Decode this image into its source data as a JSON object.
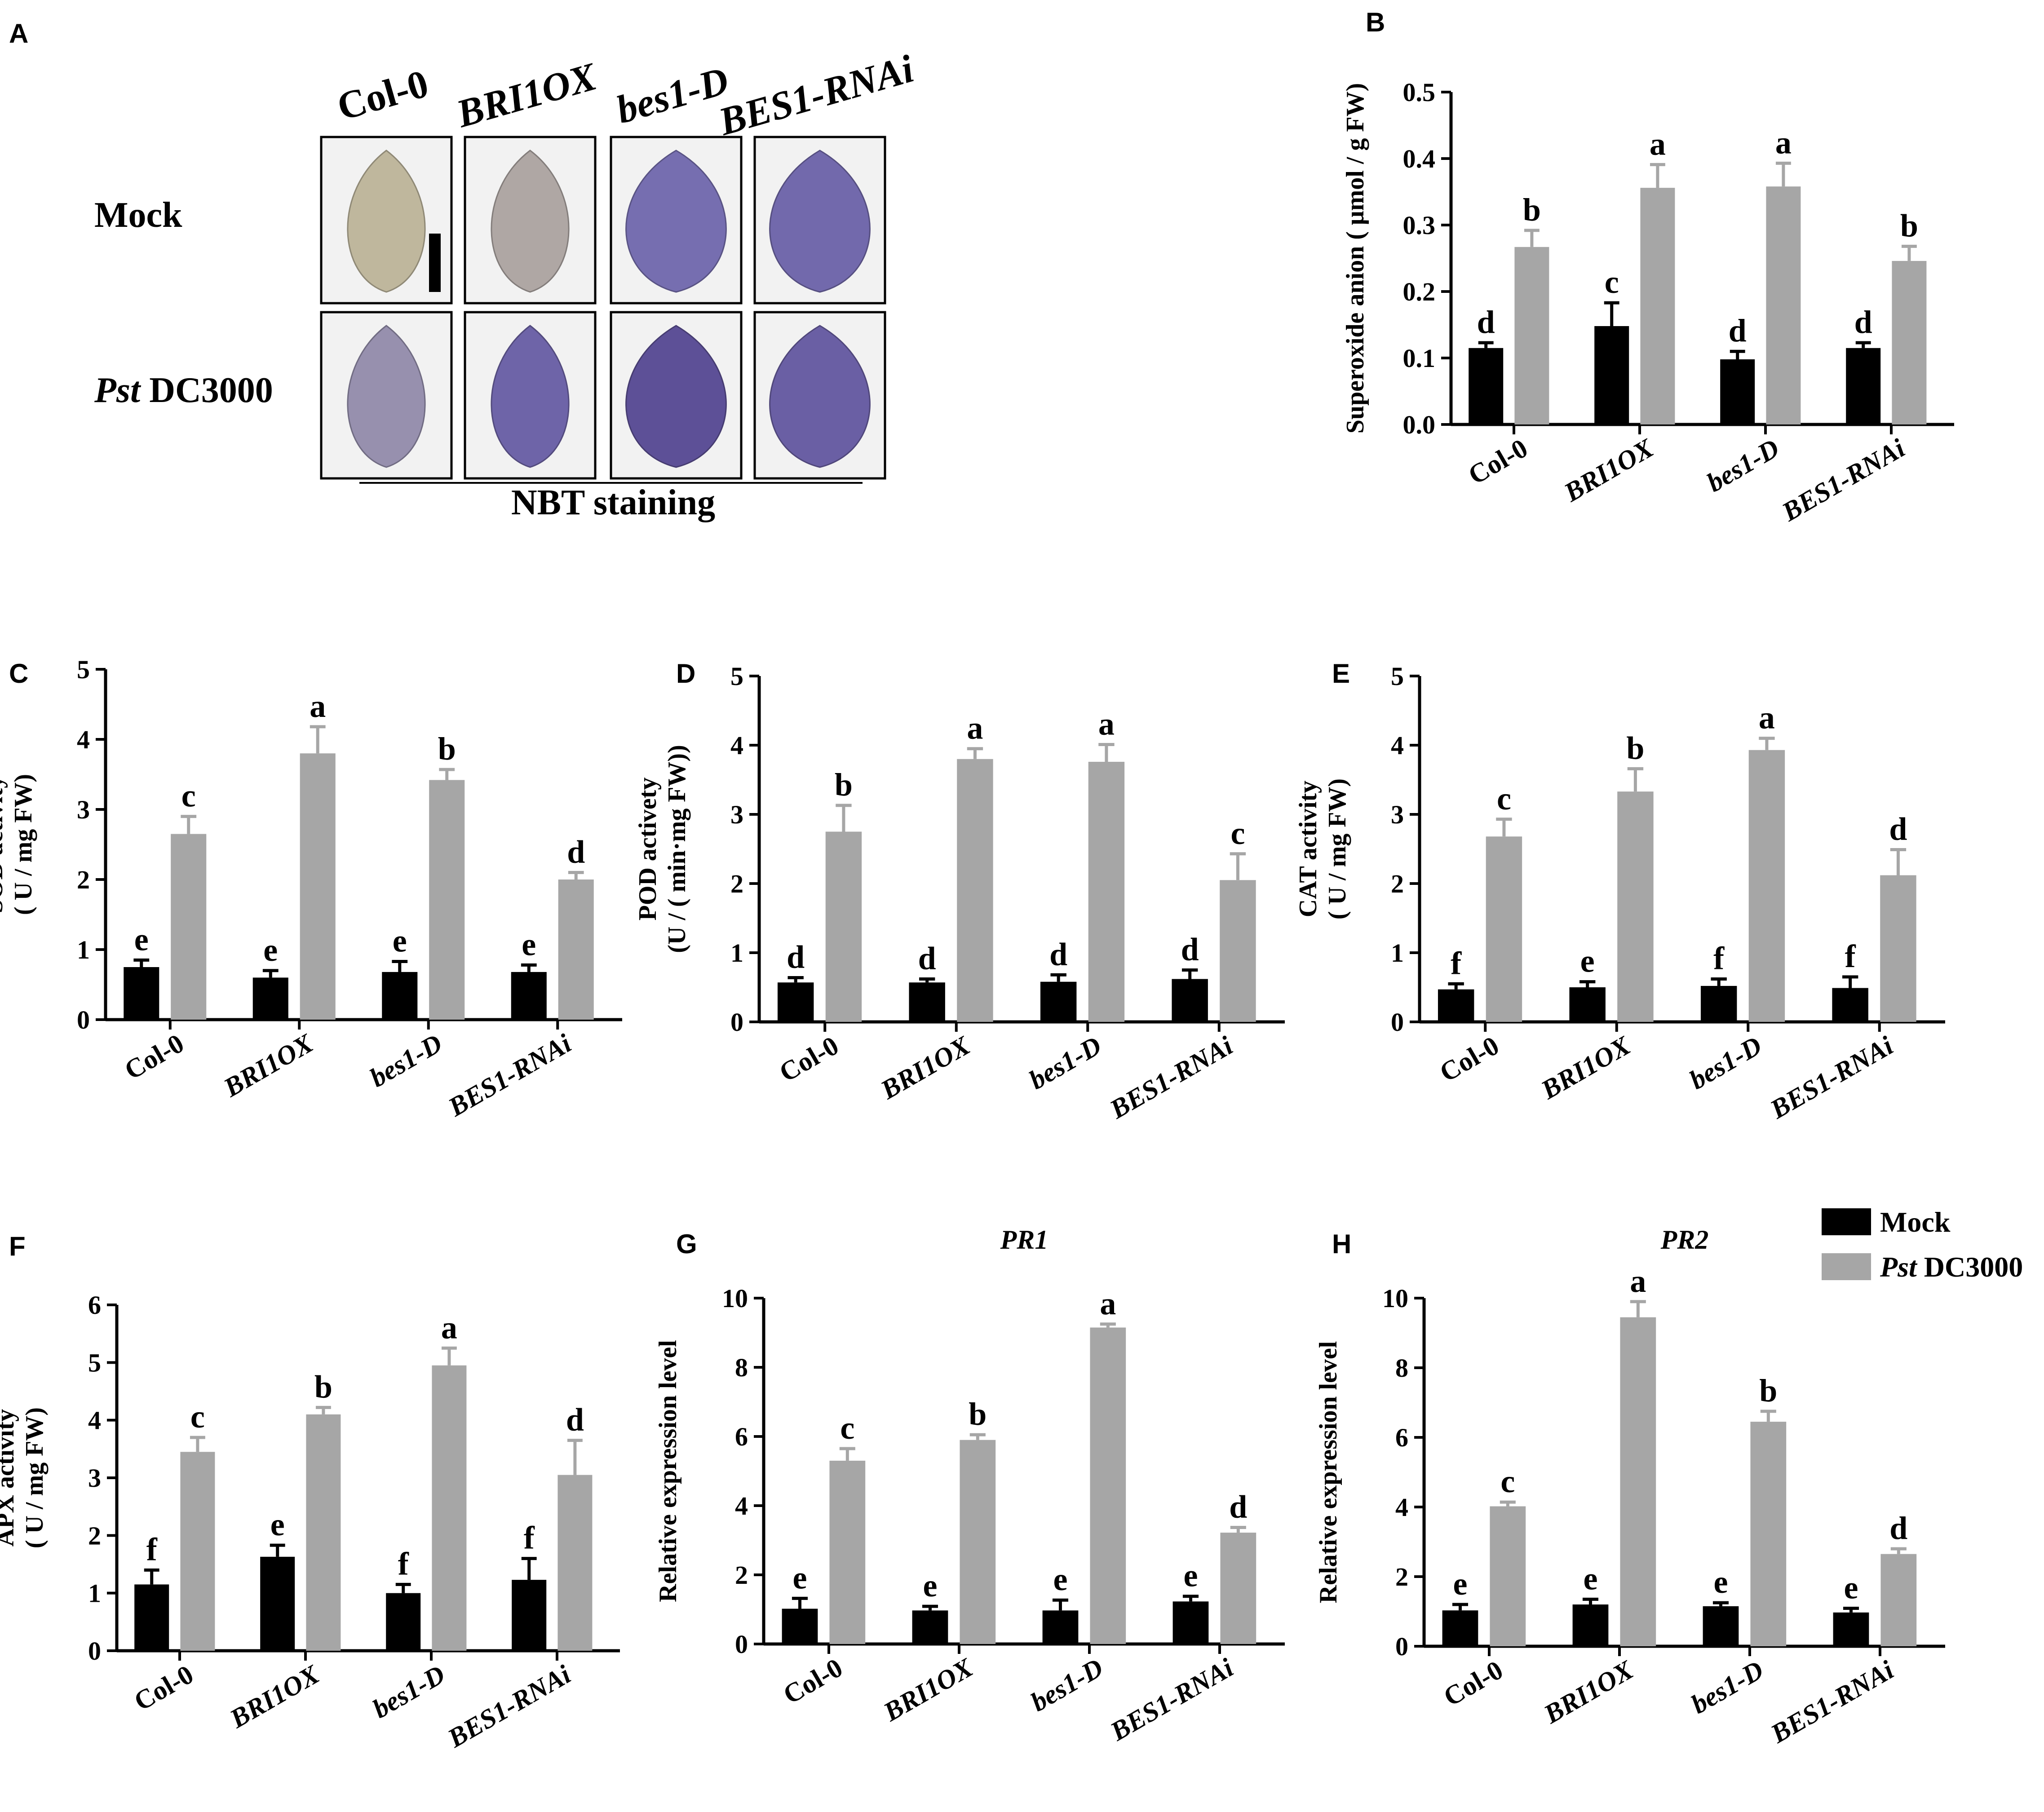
{
  "colors": {
    "mock": "#000000",
    "pst": "#a6a6a6",
    "leaf_yellow": "#cfc796",
    "leaf_blue": "#7f78b8",
    "leaf_dark": "#54468f",
    "leaf_bg": "#f2f2f2"
  },
  "legend": {
    "mock_label": "Mock",
    "pst_italic": "Pst",
    "pst_rest": " DC3000"
  },
  "photo_panel": {
    "letter": "A",
    "genotypes": [
      "Col-0",
      "BRI1OX",
      "bes1-D",
      "BES1-RNAi"
    ],
    "genotype_italic": [
      false,
      true,
      true,
      true
    ],
    "rows": [
      {
        "label_italic": "",
        "label_rest": "Mock"
      },
      {
        "label_italic": "Pst",
        "label_rest": " DC3000"
      }
    ],
    "caption": "NBT staining",
    "stain_levels": [
      [
        0.1,
        0.2,
        0.6,
        0.65
      ],
      [
        0.35,
        0.7,
        0.9,
        0.75
      ]
    ]
  },
  "chart_data": [
    {
      "letter": "B",
      "type": "bar",
      "title": "",
      "title_italic": false,
      "ylabel_lines": [
        "Superoxide anion ( μmol / g FW)"
      ],
      "ylim": [
        0,
        0.5
      ],
      "yticks": [
        "0.0",
        "0.1",
        "0.2",
        "0.3",
        "0.4",
        "0.5"
      ],
      "categories": [
        "Col-0",
        "BRI1OX",
        "bes1-D",
        "BES1-RNAi"
      ],
      "category_italic": [
        false,
        true,
        true,
        true
      ],
      "series": [
        {
          "name": "Mock",
          "values": [
            0.115,
            0.148,
            0.098,
            0.115
          ],
          "errors": [
            0.008,
            0.035,
            0.012,
            0.008
          ],
          "letters": [
            "d",
            "c",
            "d",
            "d"
          ]
        },
        {
          "name": "Pst DC3000",
          "values": [
            0.267,
            0.356,
            0.358,
            0.246
          ],
          "errors": [
            0.025,
            0.035,
            0.035,
            0.022
          ],
          "letters": [
            "b",
            "a",
            "a",
            "b"
          ]
        }
      ]
    },
    {
      "letter": "C",
      "type": "bar",
      "title": "",
      "title_italic": false,
      "ylabel_lines": [
        "SOD activity",
        "( U / mg FW)"
      ],
      "ylim": [
        0,
        5
      ],
      "yticks": [
        "0",
        "1",
        "2",
        "3",
        "4",
        "5"
      ],
      "categories": [
        "Col-0",
        "BRI1OX",
        "bes1-D",
        "BES1-RNAi"
      ],
      "category_italic": [
        false,
        true,
        true,
        true
      ],
      "series": [
        {
          "name": "Mock",
          "values": [
            0.75,
            0.6,
            0.68,
            0.68
          ],
          "errors": [
            0.1,
            0.1,
            0.15,
            0.1
          ],
          "letters": [
            "e",
            "e",
            "e",
            "e"
          ]
        },
        {
          "name": "Pst DC3000",
          "values": [
            2.65,
            3.8,
            3.42,
            2.0
          ],
          "errors": [
            0.25,
            0.38,
            0.15,
            0.1
          ],
          "letters": [
            "c",
            "a",
            "b",
            "d"
          ]
        }
      ]
    },
    {
      "letter": "D",
      "type": "bar",
      "title": "",
      "title_italic": false,
      "ylabel_lines": [
        "POD activety",
        "(U / ( min·mg FW))"
      ],
      "ylim": [
        0,
        5
      ],
      "yticks": [
        "0",
        "1",
        "2",
        "3",
        "4",
        "5"
      ],
      "categories": [
        "Col-0",
        "BRI1OX",
        "bes1-D",
        "BES1-RNAi"
      ],
      "category_italic": [
        false,
        true,
        true,
        true
      ],
      "series": [
        {
          "name": "Mock",
          "values": [
            0.57,
            0.57,
            0.58,
            0.62
          ],
          "errors": [
            0.07,
            0.05,
            0.1,
            0.13
          ],
          "letters": [
            "d",
            "d",
            "d",
            "d"
          ]
        },
        {
          "name": "Pst DC3000",
          "values": [
            2.75,
            3.8,
            3.76,
            2.05
          ],
          "errors": [
            0.38,
            0.15,
            0.25,
            0.38
          ],
          "letters": [
            "b",
            "a",
            "a",
            "c"
          ]
        }
      ]
    },
    {
      "letter": "E",
      "type": "bar",
      "title": "",
      "title_italic": false,
      "ylabel_lines": [
        "CAT activity",
        "( U / mg FW)"
      ],
      "ylim": [
        0,
        5
      ],
      "yticks": [
        "0",
        "1",
        "2",
        "3",
        "4",
        "5"
      ],
      "categories": [
        "Col-0",
        "BRI1OX",
        "bes1-D",
        "BES1-RNAi"
      ],
      "category_italic": [
        false,
        true,
        true,
        true
      ],
      "series": [
        {
          "name": "Mock",
          "values": [
            0.47,
            0.5,
            0.52,
            0.49
          ],
          "errors": [
            0.08,
            0.08,
            0.1,
            0.16
          ],
          "letters": [
            "f",
            "e",
            "f",
            "f"
          ]
        },
        {
          "name": "Pst DC3000",
          "values": [
            2.68,
            3.33,
            3.93,
            2.12
          ],
          "errors": [
            0.25,
            0.33,
            0.17,
            0.37
          ],
          "letters": [
            "c",
            "b",
            "a",
            "d"
          ]
        }
      ]
    },
    {
      "letter": "F",
      "type": "bar",
      "title": "",
      "title_italic": false,
      "ylabel_lines": [
        "APX activity",
        "( U / mg FW)"
      ],
      "ylim": [
        0,
        6
      ],
      "yticks": [
        "0",
        "1",
        "2",
        "3",
        "4",
        "5",
        "6"
      ],
      "categories": [
        "Col-0",
        "BRI1OX",
        "bes1-D",
        "BES1-RNAi"
      ],
      "category_italic": [
        false,
        true,
        true,
        true
      ],
      "series": [
        {
          "name": "Mock",
          "values": [
            1.15,
            1.63,
            1.0,
            1.23
          ],
          "errors": [
            0.25,
            0.2,
            0.15,
            0.37
          ],
          "letters": [
            "f",
            "e",
            "f",
            "f"
          ]
        },
        {
          "name": "Pst DC3000",
          "values": [
            3.45,
            4.1,
            4.95,
            3.05
          ],
          "errors": [
            0.25,
            0.12,
            0.3,
            0.6
          ],
          "letters": [
            "c",
            "b",
            "a",
            "d"
          ]
        }
      ]
    },
    {
      "letter": "G",
      "type": "bar",
      "title": "PR1",
      "title_italic": true,
      "ylabel_lines": [
        "Relative expression level"
      ],
      "ylim": [
        0,
        10
      ],
      "yticks": [
        "0",
        "2",
        "4",
        "6",
        "8",
        "10"
      ],
      "categories": [
        "Col-0",
        "BRI1OX",
        "bes1-D",
        "BES1-RNAi"
      ],
      "category_italic": [
        false,
        true,
        true,
        true
      ],
      "series": [
        {
          "name": "Mock",
          "values": [
            1.02,
            0.97,
            0.97,
            1.23
          ],
          "errors": [
            0.3,
            0.12,
            0.3,
            0.15
          ],
          "letters": [
            "e",
            "e",
            "e",
            "e"
          ]
        },
        {
          "name": "Pst DC3000",
          "values": [
            5.3,
            5.9,
            9.15,
            3.22
          ],
          "errors": [
            0.35,
            0.15,
            0.1,
            0.15
          ],
          "letters": [
            "c",
            "b",
            "a",
            "d"
          ]
        }
      ]
    },
    {
      "letter": "H",
      "type": "bar",
      "title": "PR2",
      "title_italic": true,
      "ylabel_lines": [
        "Relative expression level"
      ],
      "ylim": [
        0,
        10
      ],
      "yticks": [
        "0",
        "2",
        "4",
        "6",
        "8",
        "10"
      ],
      "categories": [
        "Col-0",
        "BRI1OX",
        "bes1-D",
        "BES1-RNAi"
      ],
      "category_italic": [
        false,
        true,
        true,
        true
      ],
      "series": [
        {
          "name": "Mock",
          "values": [
            1.03,
            1.2,
            1.15,
            0.97
          ],
          "errors": [
            0.17,
            0.15,
            0.1,
            0.12
          ],
          "letters": [
            "e",
            "e",
            "e",
            "e"
          ]
        },
        {
          "name": "Pst DC3000",
          "values": [
            4.02,
            9.45,
            6.45,
            2.65
          ],
          "errors": [
            0.12,
            0.45,
            0.3,
            0.15
          ],
          "letters": [
            "c",
            "a",
            "b",
            "d"
          ]
        }
      ]
    }
  ]
}
